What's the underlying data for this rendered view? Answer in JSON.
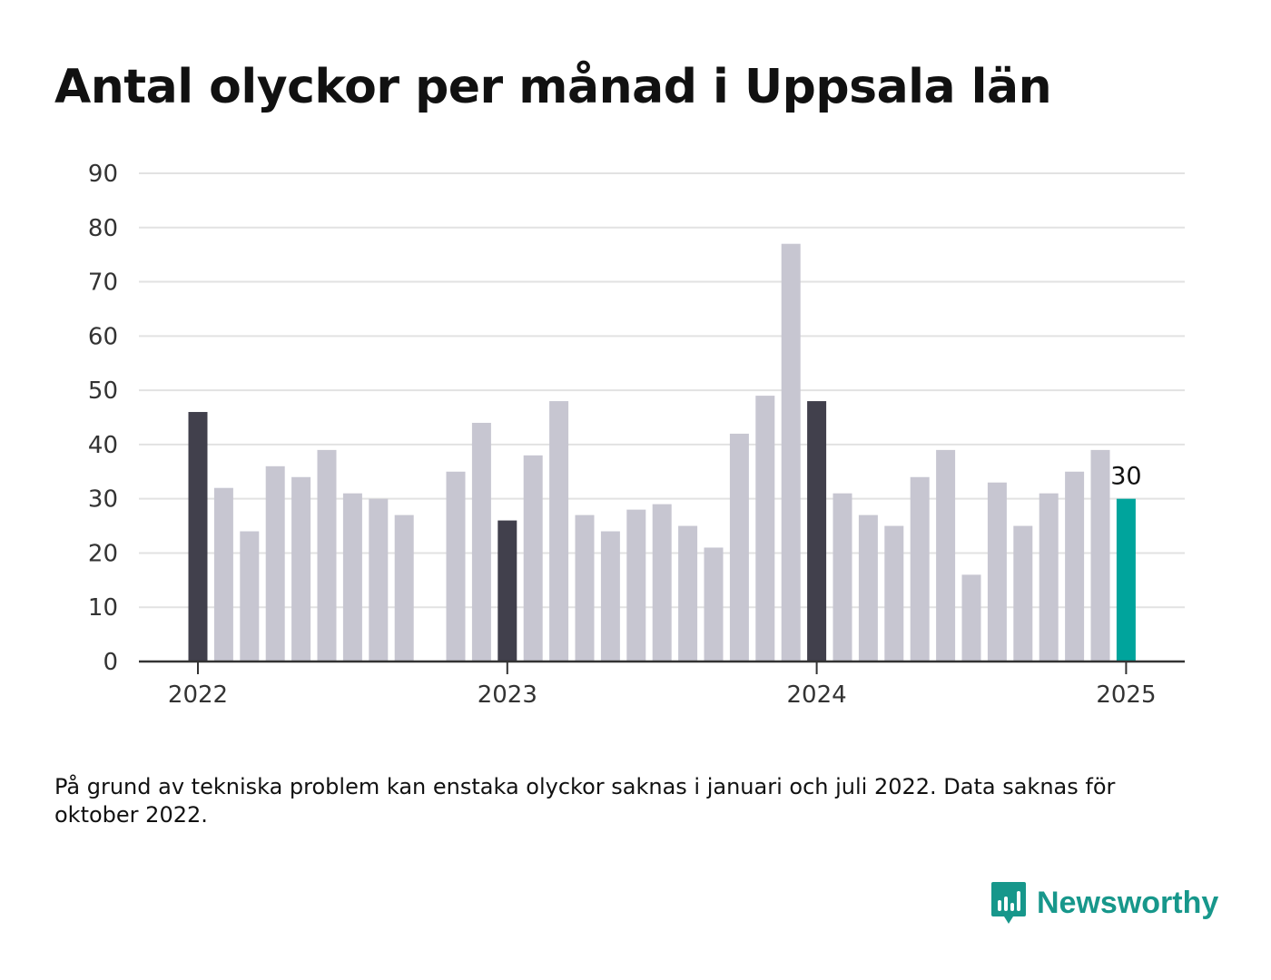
{
  "title": "Antal olyckor per månad i Uppsala län",
  "footnote": "På grund av tekniska problem kan enstaka olyckor saknas i januari och juli 2022. Data saknas för oktober 2022.",
  "brand": {
    "name": "Newsworthy",
    "icon": "newsworthy-logo-icon",
    "color": "#17978b"
  },
  "colors": {
    "january": "#41404c",
    "regular": "#c7c6d1",
    "latest": "#00a49c",
    "grid": "#e2e2e2",
    "axis": "#333333"
  },
  "chart_data": {
    "type": "bar",
    "title": "Antal olyckor per månad i Uppsala län",
    "xlabel": "",
    "ylabel": "",
    "ylim": [
      0,
      90
    ],
    "yticks": [
      0,
      10,
      20,
      30,
      40,
      50,
      60,
      70,
      80,
      90
    ],
    "xticks": [
      "2022",
      "2023",
      "2024",
      "2025"
    ],
    "grid": true,
    "highlight_label": "30",
    "categories": [
      "2022-01",
      "2022-02",
      "2022-03",
      "2022-04",
      "2022-05",
      "2022-06",
      "2022-07",
      "2022-08",
      "2022-09",
      "2022-10",
      "2022-11",
      "2022-12",
      "2023-01",
      "2023-02",
      "2023-03",
      "2023-04",
      "2023-05",
      "2023-06",
      "2023-07",
      "2023-08",
      "2023-09",
      "2023-10",
      "2023-11",
      "2023-12",
      "2024-01",
      "2024-02",
      "2024-03",
      "2024-04",
      "2024-05",
      "2024-06",
      "2024-07",
      "2024-08",
      "2024-09",
      "2024-10",
      "2024-11",
      "2024-12",
      "2025-01"
    ],
    "values": [
      46,
      32,
      24,
      36,
      34,
      39,
      31,
      30,
      27,
      null,
      35,
      44,
      26,
      38,
      48,
      27,
      24,
      28,
      29,
      25,
      21,
      42,
      49,
      77,
      48,
      31,
      27,
      25,
      34,
      39,
      16,
      33,
      25,
      31,
      35,
      39,
      30
    ]
  }
}
